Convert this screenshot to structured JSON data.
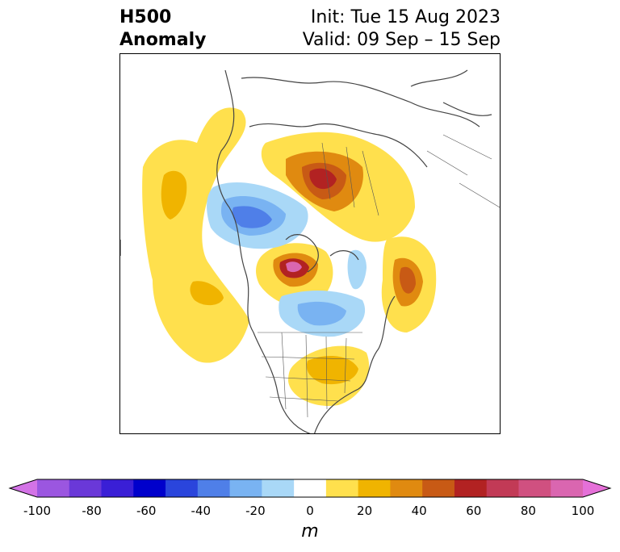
{
  "header": {
    "title_line1": "H500",
    "title_line2": "Anomaly",
    "init": "Init: Tue 15 Aug 2023",
    "valid": "Valid: 09 Sep – 15 Sep"
  },
  "colorbar": {
    "unit": "m",
    "ticks": [
      "-100",
      "-80",
      "-60",
      "-40",
      "-20",
      "0",
      "20",
      "40",
      "60",
      "80",
      "100"
    ],
    "colors": [
      "#d373e6",
      "#9b56e0",
      "#6a38d8",
      "#3a1fd6",
      "#0000cc",
      "#2a45dc",
      "#4f7fe8",
      "#79b3f2",
      "#a9d8f7",
      "#ffffff",
      "#ffe04d",
      "#f0b400",
      "#e08a10",
      "#c85a15",
      "#b22222",
      "#c23a56",
      "#d05080",
      "#da66b0",
      "#e570d8"
    ]
  }
}
